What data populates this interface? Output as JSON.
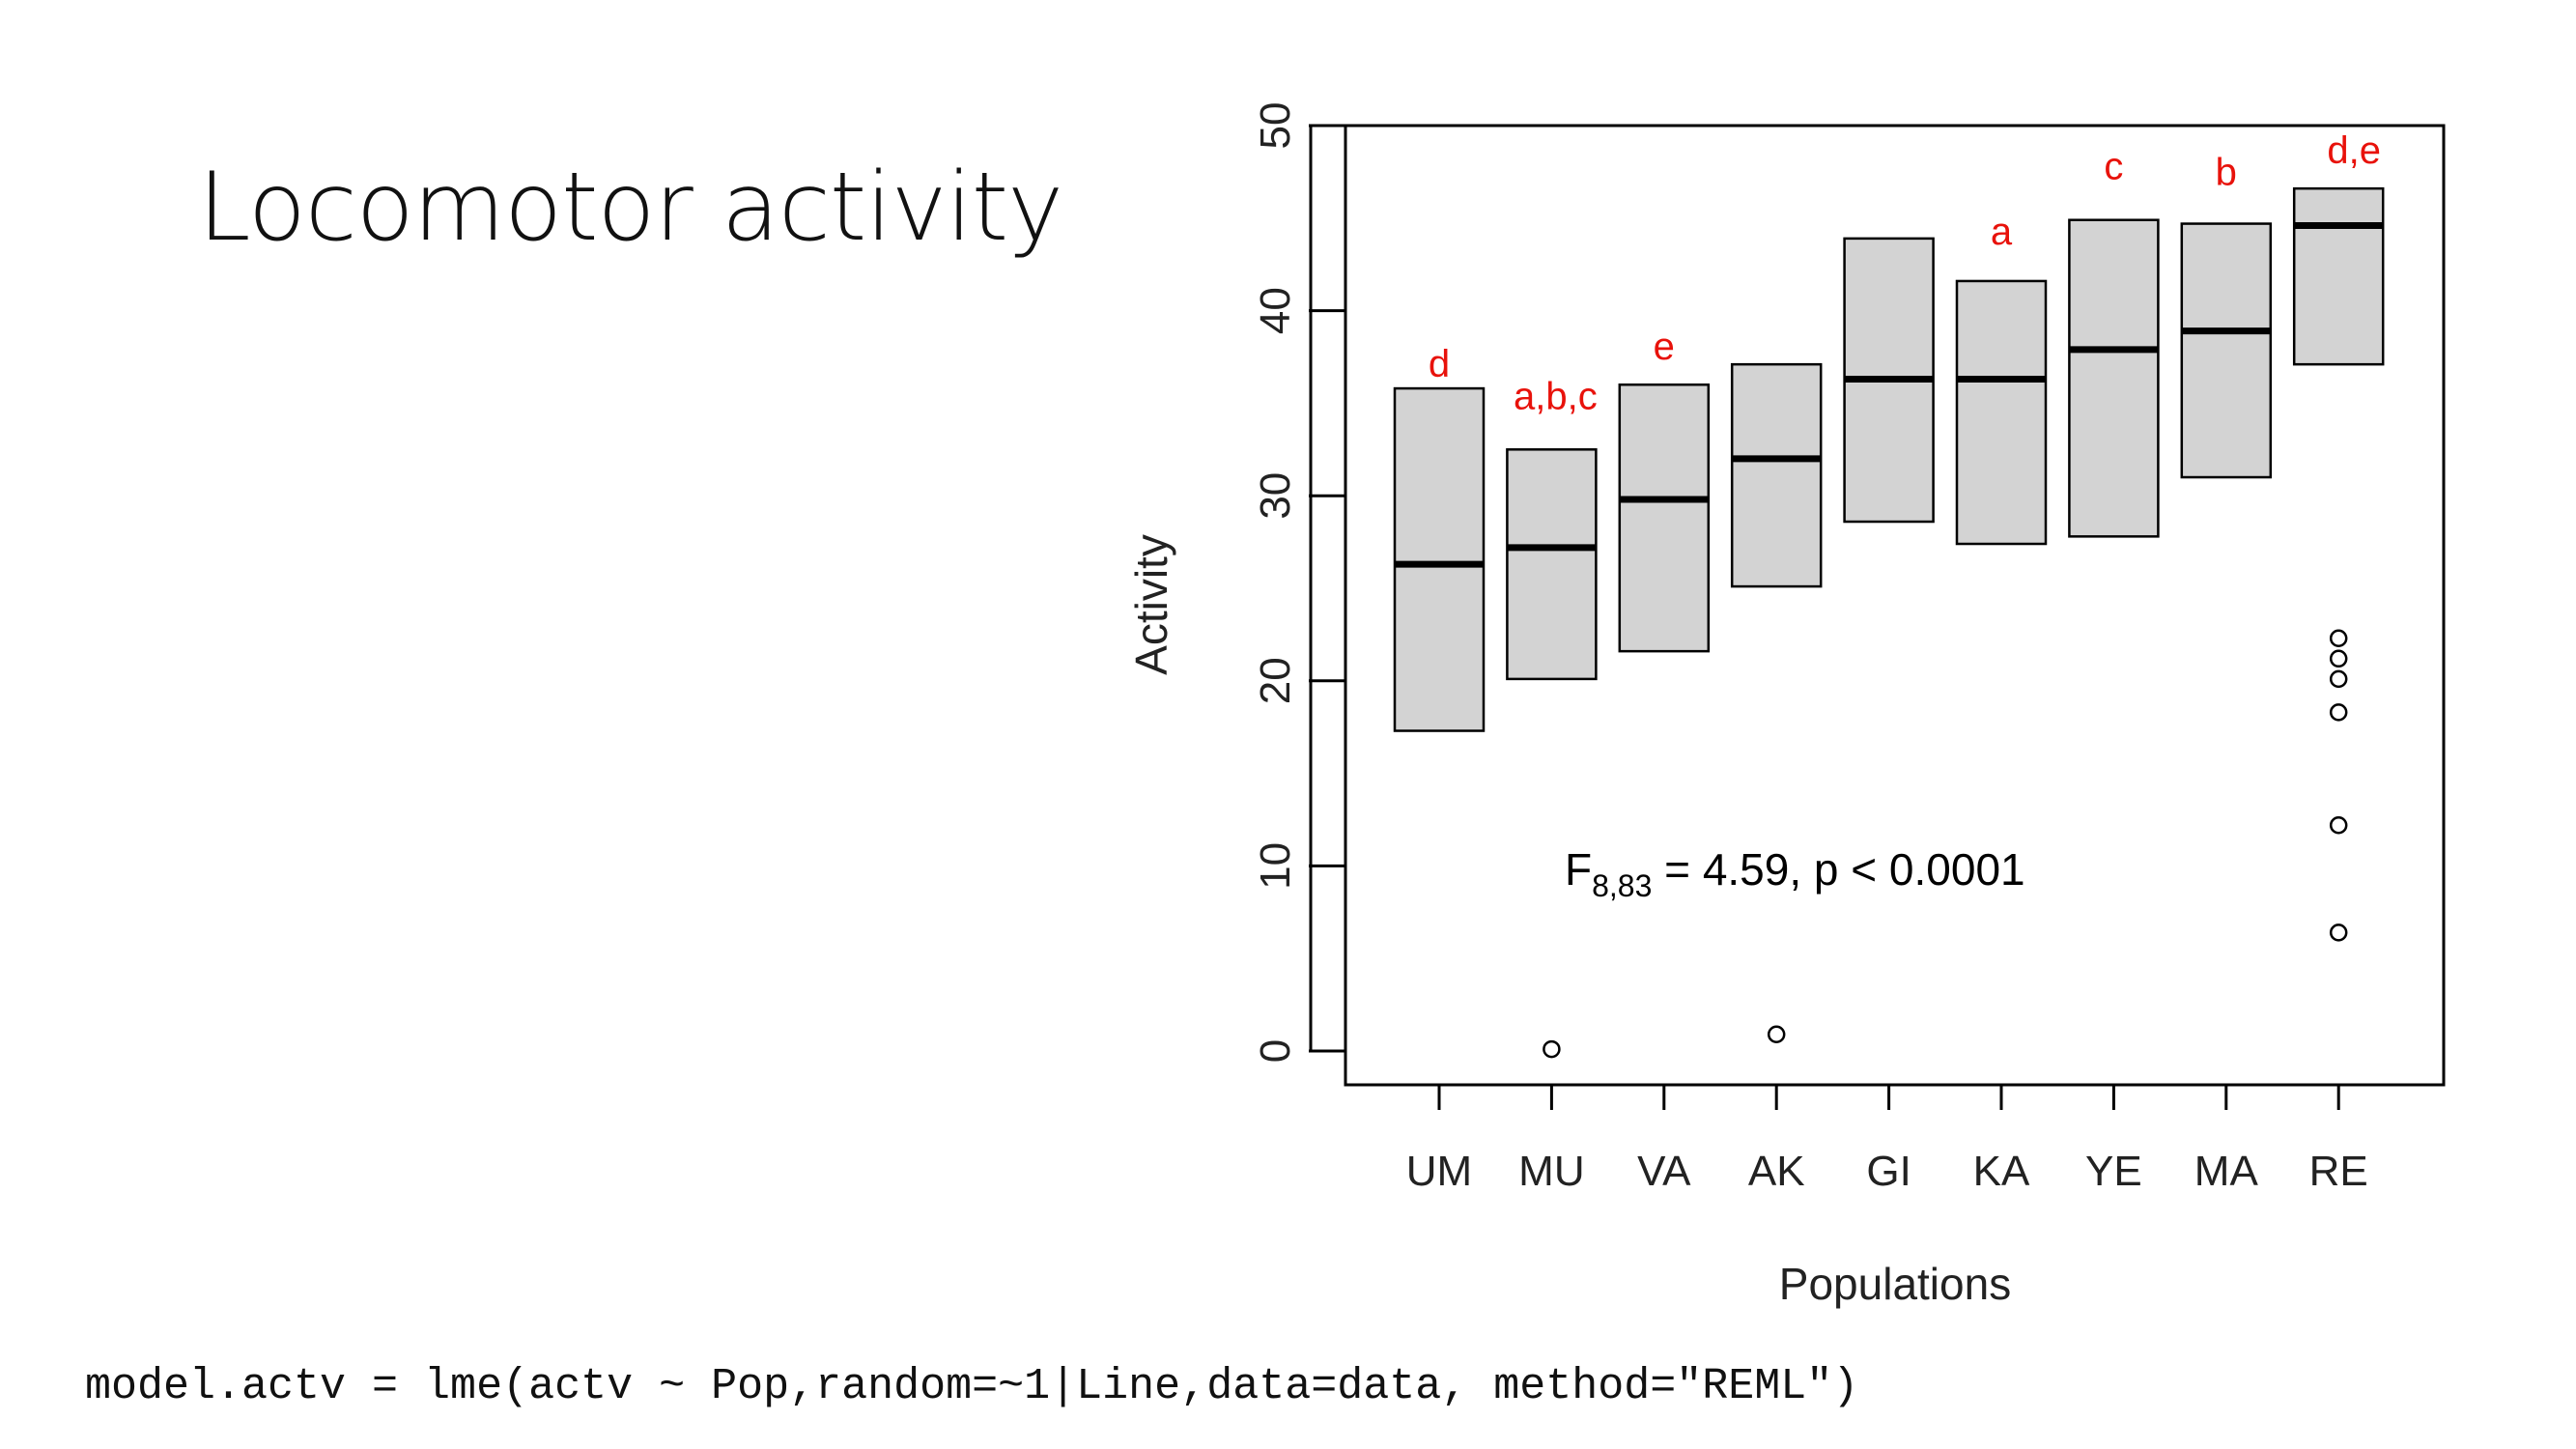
{
  "slide": {
    "title": "Locomotor activity",
    "code": "model.actv = lme(actv ~ Pop,random=~1|Line,data=data, method=\"REML\")"
  },
  "chart_data": {
    "type": "boxplot",
    "xlabel": "Populations",
    "ylabel": "Activity",
    "ylim": [
      0,
      50
    ],
    "yticks": [
      0,
      10,
      20,
      30,
      40,
      50
    ],
    "categories": [
      "UM",
      "MU",
      "VA",
      "AK",
      "GI",
      "KA",
      "YE",
      "MA",
      "RE"
    ],
    "boxes": [
      {
        "q1": 17.3,
        "median": 26.3,
        "q3": 35.8,
        "letters": "d"
      },
      {
        "q1": 20.1,
        "median": 27.2,
        "q3": 32.5,
        "letters": "a,b,c"
      },
      {
        "q1": 21.6,
        "median": 29.8,
        "q3": 36.0,
        "letters": "e"
      },
      {
        "q1": 25.1,
        "median": 32.0,
        "q3": 37.1,
        "letters": ""
      },
      {
        "q1": 28.6,
        "median": 36.3,
        "q3": 43.9,
        "letters": ""
      },
      {
        "q1": 27.4,
        "median": 36.3,
        "q3": 41.6,
        "letters": "a"
      },
      {
        "q1": 27.8,
        "median": 37.9,
        "q3": 44.9,
        "letters": "c"
      },
      {
        "q1": 31.0,
        "median": 38.9,
        "q3": 44.7,
        "letters": "b"
      },
      {
        "q1": 37.1,
        "median": 44.6,
        "q3": 46.6,
        "letters": "d,e"
      }
    ],
    "outliers": [
      {
        "category": "MU",
        "values": [
          0.1
        ]
      },
      {
        "category": "AK",
        "values": [
          0.9
        ]
      },
      {
        "category": "RE",
        "values": [
          6.4,
          12.2,
          18.3,
          20.1,
          21.2,
          22.3
        ]
      }
    ],
    "annotation": {
      "prefix": "F",
      "subscript": "8,83",
      "rest": " = 4.59,  p < 0.0001"
    },
    "colors": {
      "box_fill": "#d3d3d3",
      "letters": "#e8120b"
    },
    "grid": false
  }
}
